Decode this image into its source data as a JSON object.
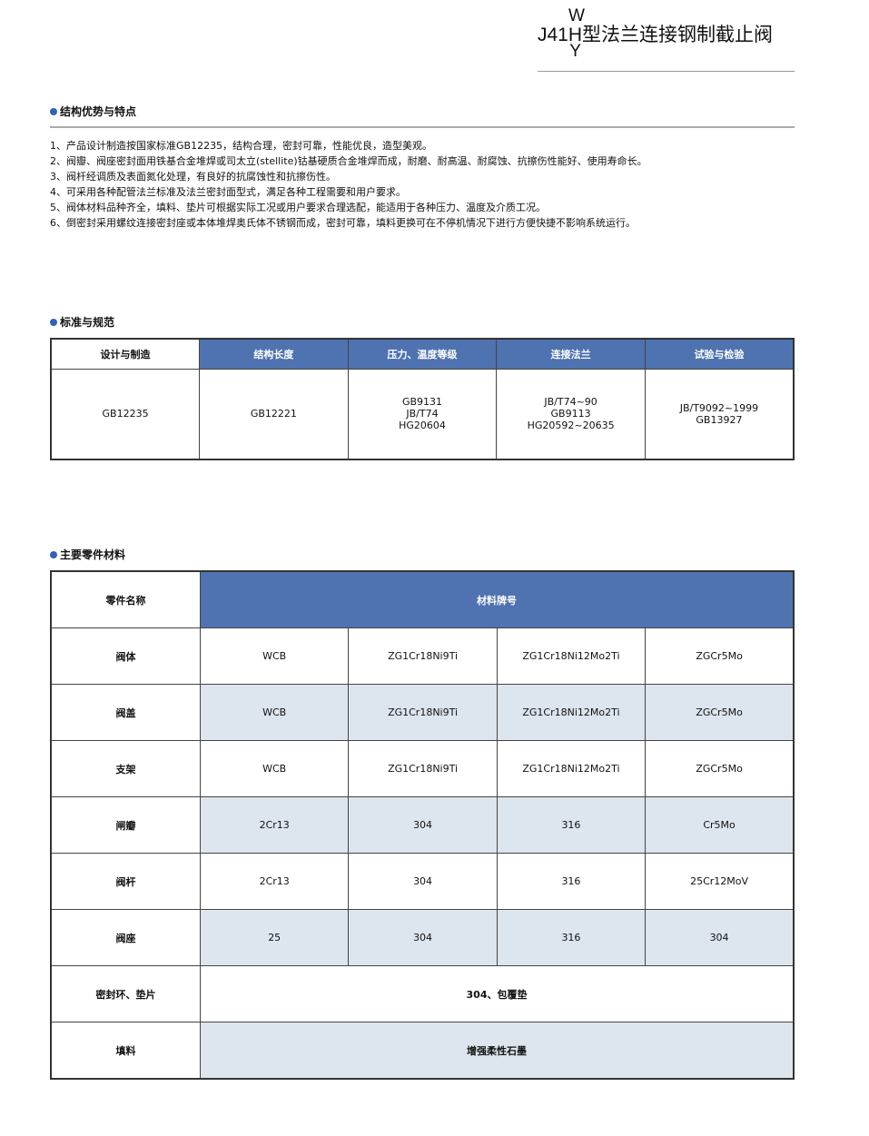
{
  "header": {
    "model_prefix": "J41H",
    "model_top": "W",
    "model_bottom": "Y",
    "title": "型法兰连接钢制截止阀"
  },
  "features": {
    "heading": "结构优势与特点",
    "items": [
      "1、产品设计制造按国家标准GB12235，结构合理，密封可靠，性能优良，造型美观。",
      "2、阀瓣、阀座密封面用铁基合金堆焊或司太立(stellite)钴基硬质合金堆焊而成，耐磨、耐高温、耐腐蚀、抗擦伤性能好、使用寿命长。",
      "3、阀杆经调质及表面氮化处理，有良好的抗腐蚀性和抗擦伤性。",
      "4、可采用各种配管法兰标准及法兰密封面型式，满足各种工程需要和用户要求。",
      "5、阀体材料品种齐全，填料、垫片可根据实际工况或用户要求合理选配，能适用于各种压力、温度及介质工况。",
      "6、倒密封采用螺纹连接密封座或本体堆焊奥氏体不锈钢而成，密封可靠，填料更换可在不停机情况下进行方便快捷不影响系统运行。"
    ]
  },
  "standards": {
    "heading": "标准与规范",
    "headers": [
      "设计与制造",
      "结构长度",
      "压力、温度等级",
      "连接法兰",
      "试验与检验"
    ],
    "values": [
      [
        "GB12235"
      ],
      [
        "GB12221"
      ],
      [
        "GB9131",
        "JB/T74",
        "HG20604"
      ],
      [
        "JB/T74~90",
        "GB9113",
        "HG20592~20635"
      ],
      [
        "JB/T9092~1999",
        "GB13927"
      ]
    ]
  },
  "materials": {
    "heading": "主要零件材料",
    "col_part": "零件名称",
    "col_material": "材料牌号",
    "rows": [
      {
        "part": "阀体",
        "values": [
          "WCB",
          "ZG1Cr18Ni9Ti",
          "ZG1Cr18Ni12Mo2Ti",
          "ZGCr5Mo"
        ]
      },
      {
        "part": "阀盖",
        "values": [
          "WCB",
          "ZG1Cr18Ni9Ti",
          "ZG1Cr18Ni12Mo2Ti",
          "ZGCr5Mo"
        ]
      },
      {
        "part": "支架",
        "values": [
          "WCB",
          "ZG1Cr18Ni9Ti",
          "ZG1Cr18Ni12Mo2Ti",
          "ZGCr5Mo"
        ]
      },
      {
        "part": "闸瓣",
        "values": [
          "2Cr13",
          "304",
          "316",
          "Cr5Mo"
        ]
      },
      {
        "part": "阀杆",
        "values": [
          "2Cr13",
          "304",
          "316",
          "25Cr12MoV"
        ]
      },
      {
        "part": "阀座",
        "values": [
          "25",
          "304",
          "316",
          "304"
        ]
      },
      {
        "part": "密封环、垫片",
        "values": [
          "304、包覆垫"
        ]
      },
      {
        "part": "填料",
        "values": [
          "增强柔性石墨"
        ]
      }
    ]
  },
  "colors": {
    "header_blue": "#4f72b0",
    "alt_row": "#dde5ee",
    "bullet": "#2f62b8"
  }
}
